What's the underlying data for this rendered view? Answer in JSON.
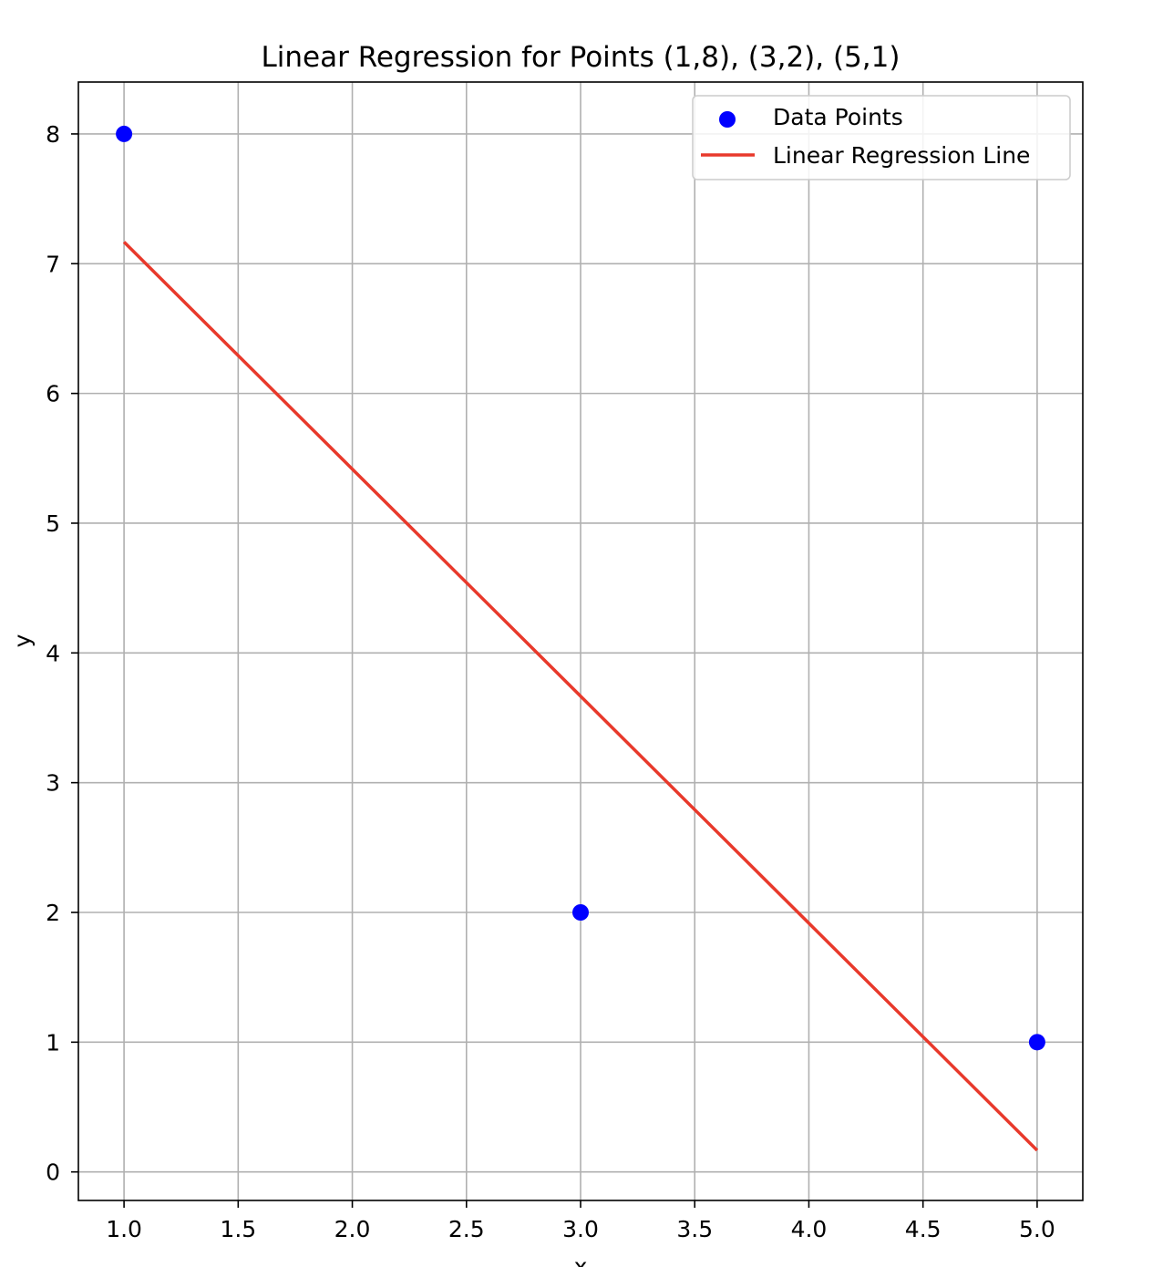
{
  "chart_data": {
    "type": "scatter",
    "title": "Linear Regression for Points (1,8), (3,2), (5,1)",
    "xlabel": "x",
    "ylabel": "y",
    "xlim": [
      0.8,
      5.2
    ],
    "ylim": [
      -0.22,
      8.4
    ],
    "xticks": [
      1.0,
      1.5,
      2.0,
      2.5,
      3.0,
      3.5,
      4.0,
      4.5,
      5.0
    ],
    "xtick_labels": [
      "1.0",
      "1.5",
      "2.0",
      "2.5",
      "3.0",
      "3.5",
      "4.0",
      "4.5",
      "5.0"
    ],
    "yticks": [
      0,
      1,
      2,
      3,
      4,
      5,
      6,
      7,
      8
    ],
    "ytick_labels": [
      "0",
      "1",
      "2",
      "3",
      "4",
      "5",
      "6",
      "7",
      "8"
    ],
    "grid": true,
    "legend_position": "top-right",
    "series": [
      {
        "name": "Data Points",
        "kind": "scatter",
        "color": "#0000ff",
        "x": [
          1,
          3,
          5
        ],
        "y": [
          8,
          2,
          1
        ]
      },
      {
        "name": "Linear Regression Line",
        "kind": "line",
        "color": "#e8392b",
        "x": [
          1,
          5
        ],
        "y": [
          7.1667,
          0.1667
        ]
      }
    ]
  }
}
